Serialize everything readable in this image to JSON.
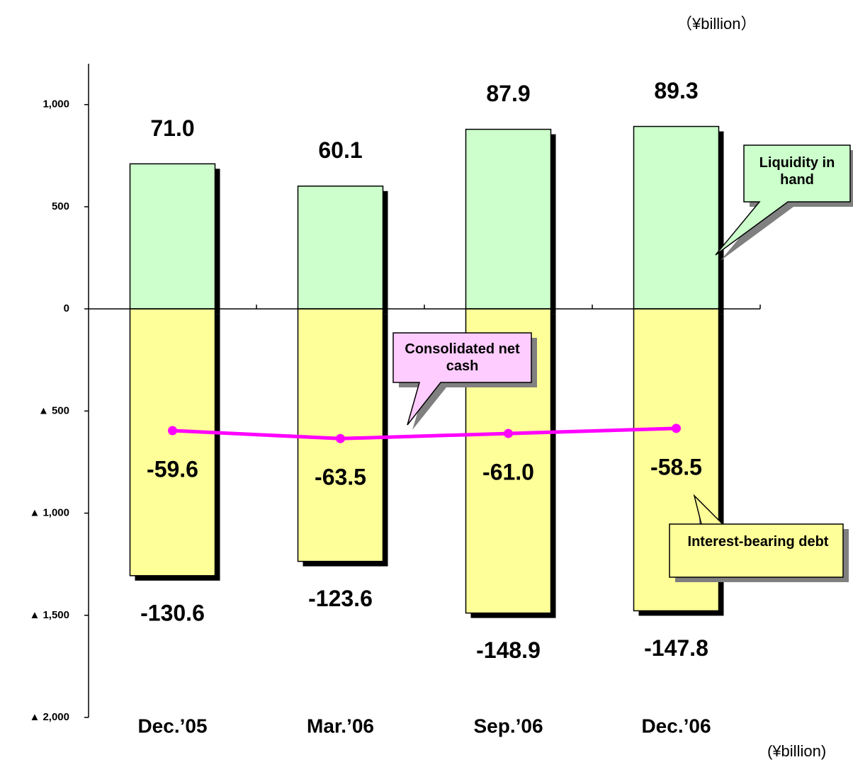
{
  "chart_data": {
    "type": "bar",
    "categories": [
      "Dec.’05",
      "Mar.’06",
      "Sep.’06",
      "Dec.’06"
    ],
    "series": [
      {
        "name": "Liquidity in hand",
        "type": "bar",
        "color": "#ccffcc",
        "values": [
          710,
          601,
          879,
          893
        ],
        "value_labels": [
          "71.0",
          "60.1",
          "87.9",
          "89.3"
        ]
      },
      {
        "name": "Interest-bearing debt",
        "type": "bar",
        "color": "#ffff99",
        "values": [
          -1306,
          -1236,
          -1489,
          -1478
        ],
        "value_labels": [
          "-130.6",
          "-123.6",
          "-148.9",
          "-147.8"
        ]
      },
      {
        "name": "Consolidated net cash",
        "type": "line",
        "color": "#ff00ff",
        "values": [
          -596,
          -635,
          -610,
          -585
        ],
        "value_labels": [
          "-59.6",
          "-63.5",
          "-61.0",
          "-58.5"
        ]
      }
    ],
    "ylim": [
      -2000,
      1200
    ],
    "yticks": [
      {
        "value": 1000,
        "label": "1,000"
      },
      500,
      0,
      {
        "value": -500,
        "label": "▲ 500"
      },
      {
        "value": -1000,
        "label": "▲ 1,000"
      },
      {
        "value": -1500,
        "label": "▲ 1,500"
      },
      {
        "value": -2000,
        "label": "▲ 2,000"
      }
    ],
    "annotations": [
      "（¥billion）",
      "(¥billion)"
    ],
    "grid": false
  }
}
